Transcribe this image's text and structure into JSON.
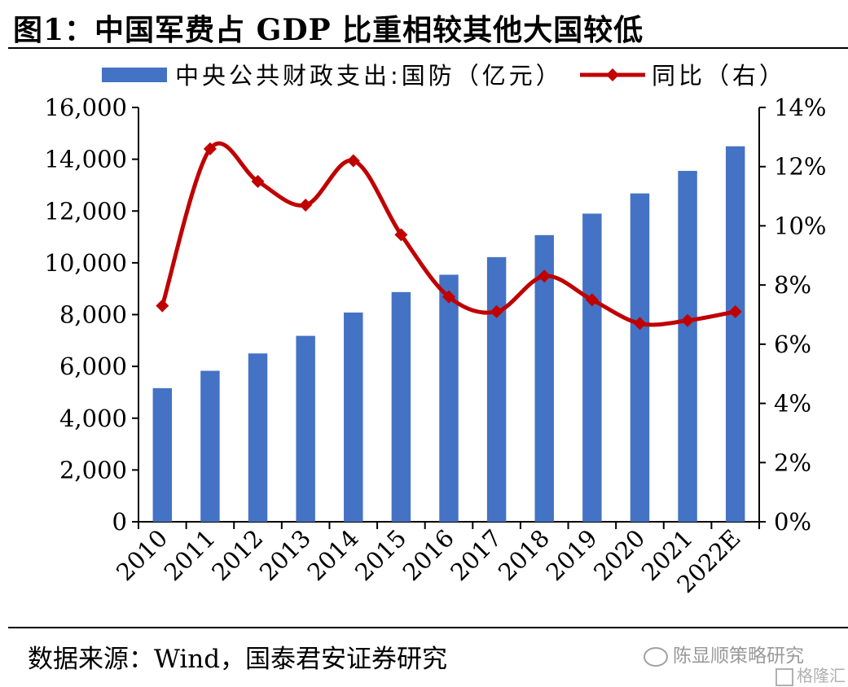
{
  "figure": {
    "title": "图1：中国军费占 GDP 比重相较其他大国较低",
    "source": "数据来源：Wind，国泰君安证券研究",
    "watermark": "陈显顺策略研究",
    "watermark_brand": "格隆汇"
  },
  "chart_data": {
    "type": "bar+line",
    "categories": [
      "2010",
      "2011",
      "2012",
      "2013",
      "2014",
      "2015",
      "2016",
      "2017",
      "2018",
      "2019",
      "2020",
      "2021",
      "2022E"
    ],
    "series": [
      {
        "name": "中央公共财政支出:国防（亿元）",
        "type": "bar",
        "axis": "left",
        "color": "#4472c4",
        "values": [
          5160,
          5830,
          6500,
          7180,
          8080,
          8870,
          9540,
          10220,
          11070,
          11900,
          12680,
          13550,
          14500
        ]
      },
      {
        "name": "同比（右）",
        "type": "line",
        "axis": "right",
        "color": "#c00000",
        "values": [
          7.3,
          12.6,
          11.5,
          10.7,
          12.2,
          9.7,
          7.6,
          7.1,
          8.3,
          7.5,
          6.7,
          6.8,
          7.1
        ]
      }
    ],
    "y_left": {
      "min": 0,
      "max": 16000,
      "ticks": [
        "0",
        "2,000",
        "4,000",
        "6,000",
        "8,000",
        "10,000",
        "12,000",
        "14,000",
        "16,000"
      ]
    },
    "y_right": {
      "min": 0,
      "max": 14,
      "ticks": [
        "0%",
        "2%",
        "4%",
        "6%",
        "8%",
        "10%",
        "12%",
        "14%"
      ]
    },
    "grid": false,
    "legend": "top"
  }
}
